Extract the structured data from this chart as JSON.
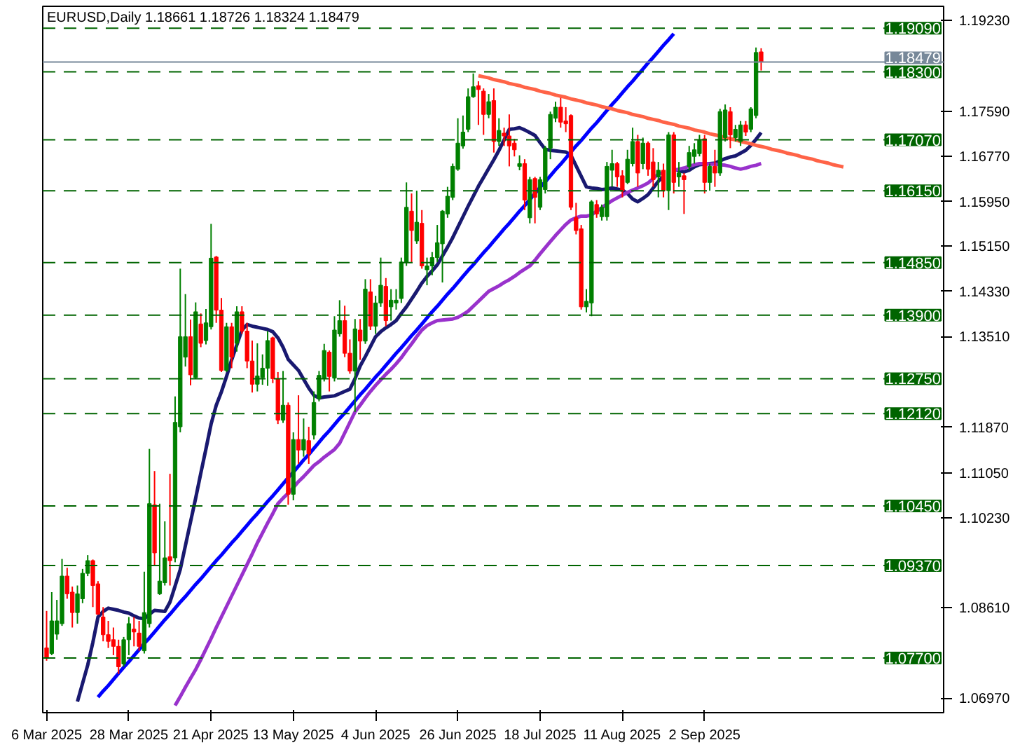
{
  "chart_data": {
    "type": "candlestick",
    "title": "EURUSD,Daily  1.18661 1.18726 1.18324 1.18479",
    "categories": [
      "6 Mar 2025",
      null,
      null,
      null,
      null,
      null,
      null,
      null,
      null,
      null,
      null,
      null,
      null,
      null,
      null,
      null,
      "28 Mar 2025",
      null,
      null,
      null,
      null,
      null,
      null,
      null,
      null,
      null,
      null,
      null,
      null,
      null,
      null,
      null,
      "21 Apr 2025",
      null,
      null,
      null,
      null,
      null,
      null,
      null,
      null,
      null,
      null,
      null,
      null,
      null,
      null,
      null,
      "13 May 2025",
      null,
      null,
      null,
      null,
      null,
      null,
      null,
      null,
      null,
      null,
      null,
      null,
      null,
      null,
      null,
      "4 Jun 2025",
      null,
      null,
      null,
      null,
      null,
      null,
      null,
      null,
      null,
      null,
      null,
      null,
      null,
      null,
      null,
      "26 Jun 2025",
      null,
      null,
      null,
      null,
      null,
      null,
      null,
      null,
      null,
      null,
      null,
      null,
      null,
      null,
      null,
      "18 Jul 2025",
      null,
      null,
      null,
      null,
      null,
      null,
      null,
      null,
      null,
      null,
      null,
      null,
      null,
      null,
      null,
      "11 Aug 2025",
      null,
      null,
      null,
      null,
      null,
      null,
      null,
      null,
      null,
      null,
      null,
      null,
      null,
      null,
      null,
      "2 Sep 2025",
      null,
      null,
      null,
      null,
      null,
      null,
      null,
      null,
      null,
      null,
      null,
      null,
      null,
      null,
      null,
      null,
      null,
      null,
      null,
      null,
      null,
      null,
      null,
      null,
      null,
      null,
      null,
      null,
      null,
      null,
      null,
      null,
      null,
      null,
      null,
      null,
      null,
      null,
      null,
      null,
      null,
      null,
      null,
      null,
      null,
      null
    ],
    "ohlc": [
      [
        1.0788,
        1.0855,
        1.0765,
        1.077
      ],
      [
        1.0778,
        1.0889,
        1.0775,
        1.0837
      ],
      [
        1.0813,
        1.0875,
        1.0803,
        1.0837
      ],
      [
        1.0832,
        1.0949,
        1.0828,
        1.0918
      ],
      [
        1.0918,
        1.0933,
        1.0877,
        1.0886
      ],
      [
        1.0889,
        1.0899,
        1.0825,
        1.0852
      ],
      [
        1.0852,
        1.0901,
        1.0832,
        1.0886
      ],
      [
        1.0877,
        1.0931,
        1.0869,
        1.0923
      ],
      [
        1.0923,
        1.0956,
        1.0918,
        1.0946
      ],
      [
        1.0946,
        1.0948,
        1.0862,
        1.0901
      ],
      [
        1.0904,
        1.0909,
        1.0848,
        1.0849
      ],
      [
        1.0844,
        1.0862,
        1.08,
        1.0812
      ],
      [
        1.0812,
        1.0837,
        1.0788,
        1.08
      ],
      [
        1.0803,
        1.0825,
        1.0775,
        1.0791
      ],
      [
        1.0791,
        1.0803,
        1.0741,
        1.0754
      ],
      [
        1.0759,
        1.0808,
        1.0754,
        1.0803
      ],
      [
        1.0803,
        1.0844,
        1.0775,
        1.0832
      ],
      [
        1.0822,
        1.0844,
        1.0791,
        1.0817
      ],
      [
        1.0815,
        1.0837,
        1.0783,
        1.0791
      ],
      [
        1.0783,
        1.0926,
        1.0778,
        1.0852
      ],
      [
        1.0832,
        1.1148,
        1.0825,
        1.1049
      ],
      [
        1.1047,
        1.1108,
        1.0936,
        1.096
      ],
      [
        1.0886,
        1.1049,
        1.0884,
        1.0909
      ],
      [
        1.0906,
        1.1017,
        1.0901,
        1.0951
      ],
      [
        1.0953,
        1.1103,
        1.0901,
        1.0946
      ],
      [
        1.0951,
        1.1243,
        1.0943,
        1.1196
      ],
      [
        1.1188,
        1.1474,
        1.1178,
        1.1351
      ],
      [
        1.1314,
        1.1428,
        1.1297,
        1.1351
      ],
      [
        1.1351,
        1.1382,
        1.1263,
        1.1282
      ],
      [
        1.1277,
        1.1413,
        1.1275,
        1.1396
      ],
      [
        1.1374,
        1.1393,
        1.1332,
        1.1339
      ],
      [
        1.1344,
        1.1401,
        1.1337,
        1.1376
      ],
      [
        1.1369,
        1.1555,
        1.1364,
        1.1493
      ],
      [
        1.1495,
        1.1497,
        1.1376,
        1.1399
      ],
      [
        1.1399,
        1.1421,
        1.1287,
        1.129
      ],
      [
        1.129,
        1.1376,
        1.1287,
        1.1369
      ],
      [
        1.1369,
        1.1376,
        1.1294,
        1.1314
      ],
      [
        1.1339,
        1.1406,
        1.1324,
        1.1396
      ],
      [
        1.1396,
        1.1406,
        1.1356,
        1.1361
      ],
      [
        1.1361,
        1.1376,
        1.1294,
        1.1307
      ],
      [
        1.1307,
        1.1344,
        1.125,
        1.1265
      ],
      [
        1.1265,
        1.1339,
        1.1252,
        1.128
      ],
      [
        1.1277,
        1.1319,
        1.1264,
        1.1294
      ],
      [
        1.1294,
        1.1361,
        1.1262,
        1.1344
      ],
      [
        1.1349,
        1.1351,
        1.1267,
        1.1275
      ],
      [
        1.1275,
        1.1287,
        1.1193,
        1.12
      ],
      [
        1.12,
        1.1289,
        1.1195,
        1.1227
      ],
      [
        1.1227,
        1.1232,
        1.1047,
        1.1066
      ],
      [
        1.1066,
        1.1178,
        1.1055,
        1.1165
      ],
      [
        1.1165,
        1.1245,
        1.1121,
        1.1146
      ],
      [
        1.1146,
        1.1203,
        1.1134,
        1.1165
      ],
      [
        1.1163,
        1.1188,
        1.1121,
        1.1139
      ],
      [
        1.1173,
        1.1252,
        1.1165,
        1.1232
      ],
      [
        1.1239,
        1.1289,
        1.1234,
        1.1281
      ],
      [
        1.1276,
        1.1338,
        1.127,
        1.1326
      ],
      [
        1.1323,
        1.1326,
        1.1252,
        1.1279
      ],
      [
        1.1276,
        1.1388,
        1.127,
        1.1363
      ],
      [
        1.1356,
        1.1417,
        1.1351,
        1.138
      ],
      [
        1.138,
        1.1407,
        1.1314,
        1.1321
      ],
      [
        1.1321,
        1.1346,
        1.1284,
        1.1289
      ],
      [
        1.1289,
        1.1383,
        1.1215,
        1.1365
      ],
      [
        1.1363,
        1.1383,
        1.1309,
        1.1343
      ],
      [
        1.1343,
        1.1455,
        1.1338,
        1.1437
      ],
      [
        1.1432,
        1.1455,
        1.1363,
        1.137
      ],
      [
        1.137,
        1.1425,
        1.1356,
        1.1412
      ],
      [
        1.1412,
        1.1494,
        1.1405,
        1.1444
      ],
      [
        1.1442,
        1.1457,
        1.137,
        1.138
      ],
      [
        1.1405,
        1.1437,
        1.138,
        1.1417
      ],
      [
        1.1412,
        1.1437,
        1.14,
        1.1417
      ],
      [
        1.142,
        1.1494,
        1.1412,
        1.1486
      ],
      [
        1.1486,
        1.163,
        1.1479,
        1.1585
      ],
      [
        1.1578,
        1.161,
        1.1486,
        1.1543
      ],
      [
        1.1524,
        1.1615,
        1.1519,
        1.1558
      ],
      [
        1.1556,
        1.158,
        1.1474,
        1.1479
      ],
      [
        1.1472,
        1.1494,
        1.1444,
        1.1479
      ],
      [
        1.1479,
        1.1504,
        1.1462,
        1.1494
      ],
      [
        1.1494,
        1.1553,
        1.1486,
        1.1521
      ],
      [
        1.1519,
        1.158,
        1.1449,
        1.1578
      ],
      [
        1.1573,
        1.1622,
        1.1566,
        1.1605
      ],
      [
        1.1603,
        1.1664,
        1.1598,
        1.1659
      ],
      [
        1.1654,
        1.1746,
        1.1651,
        1.1701
      ],
      [
        1.1696,
        1.1751,
        1.1691,
        1.1721
      ],
      [
        1.1726,
        1.18,
        1.1721,
        1.1785
      ],
      [
        1.1785,
        1.1827,
        1.1783,
        1.1803
      ],
      [
        1.1805,
        1.1813,
        1.1734,
        1.1798
      ],
      [
        1.1795,
        1.18,
        1.1716,
        1.1753
      ],
      [
        1.1753,
        1.179,
        1.1746,
        1.1776
      ],
      [
        1.1778,
        1.18,
        1.1684,
        1.1704
      ],
      [
        1.1704,
        1.1746,
        1.1696,
        1.1724
      ],
      [
        1.1719,
        1.1729,
        1.1696,
        1.1714
      ],
      [
        1.1714,
        1.1753,
        1.1659,
        1.1696
      ],
      [
        1.1701,
        1.1709,
        1.1677,
        1.1689
      ],
      [
        1.1659,
        1.1679,
        1.1652,
        1.1664
      ],
      [
        1.1664,
        1.1672,
        1.158,
        1.1598
      ],
      [
        1.1566,
        1.164,
        1.1556,
        1.1635
      ],
      [
        1.1637,
        1.164,
        1.1556,
        1.1603
      ],
      [
        1.1585,
        1.164,
        1.158,
        1.1635
      ],
      [
        1.1617,
        1.1696,
        1.161,
        1.1692
      ],
      [
        1.1692,
        1.1758,
        1.1672,
        1.1753
      ],
      [
        1.1746,
        1.1776,
        1.1739,
        1.1766
      ],
      [
        1.1766,
        1.1783,
        1.1729,
        1.1739
      ],
      [
        1.1741,
        1.1766,
        1.1721,
        1.1736
      ],
      [
        1.1751,
        1.1753,
        1.158,
        1.1585
      ],
      [
        1.1566,
        1.1593,
        1.1536,
        1.1543
      ],
      [
        1.1546,
        1.1553,
        1.14,
        1.1405
      ],
      [
        1.1405,
        1.1437,
        1.1395,
        1.1415
      ],
      [
        1.1412,
        1.1598,
        1.1388,
        1.1595
      ],
      [
        1.159,
        1.1598,
        1.1566,
        1.1573
      ],
      [
        1.1568,
        1.159,
        1.1561,
        1.1585
      ],
      [
        1.1568,
        1.1667,
        1.1561,
        1.1659
      ],
      [
        1.1652,
        1.1689,
        1.1622,
        1.1664
      ],
      [
        1.1664,
        1.1667,
        1.1622,
        1.164
      ],
      [
        1.1642,
        1.1652,
        1.1603,
        1.1615
      ],
      [
        1.163,
        1.1689,
        1.1627,
        1.1672
      ],
      [
        1.1664,
        1.1729,
        1.1659,
        1.1704
      ],
      [
        1.1704,
        1.1716,
        1.1622,
        1.1647
      ],
      [
        1.1664,
        1.1711,
        1.1654,
        1.1701
      ],
      [
        1.1701,
        1.1704,
        1.1642,
        1.1654
      ],
      [
        1.1667,
        1.1692,
        1.1622,
        1.1635
      ],
      [
        1.164,
        1.1667,
        1.1603,
        1.1652
      ],
      [
        1.1652,
        1.1664,
        1.1603,
        1.1615
      ],
      [
        1.1615,
        1.1721,
        1.158,
        1.1716
      ],
      [
        1.1716,
        1.1721,
        1.161,
        1.163
      ],
      [
        1.164,
        1.1667,
        1.1622,
        1.1647
      ],
      [
        1.1642,
        1.1647,
        1.1573,
        1.1635
      ],
      [
        1.1659,
        1.1696,
        1.1652,
        1.1684
      ],
      [
        1.1677,
        1.1701,
        1.1664,
        1.1689
      ],
      [
        1.1682,
        1.1716,
        1.1677,
        1.1706
      ],
      [
        1.1709,
        1.1716,
        1.161,
        1.163
      ],
      [
        1.163,
        1.1664,
        1.1615,
        1.1659
      ],
      [
        1.1659,
        1.1689,
        1.1622,
        1.1647
      ],
      [
        1.1647,
        1.1763,
        1.1642,
        1.1758
      ],
      [
        1.1711,
        1.1771,
        1.1704,
        1.1761
      ],
      [
        1.1758,
        1.1766,
        1.1692,
        1.1716
      ],
      [
        1.1711,
        1.1734,
        1.1704,
        1.1726
      ],
      [
        1.1704,
        1.1741,
        1.1696,
        1.1734
      ],
      [
        1.1734,
        1.1741,
        1.1714,
        1.1721
      ],
      [
        1.1726,
        1.1766,
        1.1721,
        1.1763
      ],
      [
        1.1751,
        1.1874,
        1.1746,
        1.1865
      ],
      [
        1.18661,
        1.18726,
        1.18324,
        1.18479
      ],
      null,
      null,
      null,
      null,
      null,
      null,
      null,
      null,
      null,
      null,
      null,
      null,
      null,
      null,
      null,
      null,
      null,
      null,
      null,
      null,
      null,
      null,
      null,
      null,
      null,
      null,
      null,
      null,
      null,
      null,
      null,
      null,
      null,
      null,
      null
    ],
    "colors": [
      "#ff0000",
      "#008000",
      "#008000",
      "#008000",
      "#ff0000",
      "#ff0000",
      "#008000",
      "#008000",
      "#008000",
      "#ff0000",
      "#ff0000",
      "#ff0000",
      "#ff0000",
      "#ff0000",
      "#ff0000",
      "#008000",
      "#008000",
      "#ff0000",
      "#ff0000",
      "#008000",
      "#008000",
      "#ff0000",
      "#008000",
      "#008000",
      "#ff0000",
      "#008000",
      "#008000",
      "#008000",
      "#ff0000",
      "#008000",
      "#ff0000",
      "#008000",
      "#008000",
      "#ff0000",
      "#ff0000",
      "#008000",
      "#ff0000",
      "#008000",
      "#ff0000",
      "#ff0000",
      "#ff0000",
      "#008000",
      "#008000",
      "#008000",
      "#ff0000",
      "#ff0000",
      "#008000",
      "#ff0000",
      "#008000",
      "#ff0000",
      "#008000",
      "#ff0000",
      "#008000",
      "#008000",
      "#008000",
      "#ff0000",
      "#008000",
      "#008000",
      "#ff0000",
      "#ff0000",
      "#008000",
      "#ff0000",
      "#008000",
      "#ff0000",
      "#008000",
      "#008000",
      "#ff0000",
      "#008000",
      "#008000",
      "#008000",
      "#008000",
      "#ff0000",
      "#008000",
      "#ff0000",
      "#008000",
      "#008000",
      "#008000",
      "#008000",
      "#008000",
      "#008000",
      "#008000",
      "#008000",
      "#008000",
      "#008000",
      "#ff0000",
      "#ff0000",
      "#008000",
      "#ff0000",
      "#008000",
      "#ff0000",
      "#ff0000",
      "#ff0000",
      "#008000",
      "#ff0000",
      "#008000",
      "#ff0000",
      "#008000",
      "#008000",
      "#008000",
      "#008000",
      "#ff0000",
      "#ff0000",
      "#ff0000",
      "#ff0000",
      "#ff0000",
      "#008000",
      "#008000",
      "#ff0000",
      "#008000",
      "#008000",
      "#008000",
      "#ff0000",
      "#ff0000",
      "#008000",
      "#008000",
      "#ff0000",
      "#008000",
      "#ff0000",
      "#ff0000",
      "#008000",
      "#ff0000",
      "#008000",
      "#ff0000",
      "#008000",
      "#ff0000",
      "#008000",
      "#008000",
      "#008000",
      "#ff0000",
      "#008000",
      "#ff0000",
      "#008000",
      "#008000",
      "#ff0000",
      "#008000",
      "#008000",
      "#ff0000",
      "#008000",
      "#008000",
      "#ff0000",
      null,
      null,
      null,
      null,
      null,
      null,
      null,
      null,
      null,
      null,
      null,
      null,
      null,
      null,
      null,
      null,
      null,
      null,
      null,
      null,
      null,
      null,
      null,
      null,
      null,
      null,
      null,
      null,
      null,
      null,
      null,
      null,
      null,
      null,
      null
    ],
    "series": [
      {
        "type": "line",
        "color": "#191970",
        "values": [
          null,
          null,
          null,
          null,
          null,
          null,
          1.0691,
          1.0724,
          1.0757,
          1.0798,
          1.0844,
          1.0854,
          1.086,
          1.0858,
          1.0856,
          1.0853,
          1.0851,
          1.0846,
          1.0842,
          1.0841,
          1.0849,
          1.0856,
          1.0855,
          1.0854,
          1.0871,
          1.09,
          1.093,
          1.0973,
          1.1016,
          1.1059,
          1.1104,
          1.1148,
          1.1193,
          1.1227,
          1.1251,
          1.1279,
          1.1309,
          1.1336,
          1.1363,
          1.1373,
          1.137,
          1.1368,
          1.1366,
          1.1364,
          1.136,
          1.1349,
          1.1332,
          1.131,
          1.13,
          1.129,
          1.1274,
          1.1258,
          1.1245,
          1.124,
          1.1242,
          1.1243,
          1.1244,
          1.1248,
          1.1252,
          1.1256,
          1.1275,
          1.1298,
          1.1315,
          1.1333,
          1.1351,
          1.136,
          1.1367,
          1.1373,
          1.138,
          1.1393,
          1.1405,
          1.1419,
          1.1433,
          1.1448,
          1.146,
          1.147,
          1.1481,
          1.1497,
          1.1513,
          1.153,
          1.1549,
          1.1568,
          1.1587,
          1.1605,
          1.1623,
          1.1639,
          1.1655,
          1.1671,
          1.1688,
          1.1707,
          1.1726,
          1.1727,
          1.1729,
          1.1725,
          1.172,
          1.1715,
          1.1702,
          1.169,
          1.1688,
          1.1687,
          1.1686,
          1.1685,
          1.1679,
          1.166,
          1.1641,
          1.1622,
          1.162,
          1.1619,
          1.1617,
          1.1618,
          1.162,
          1.1618,
          1.1616,
          1.161,
          1.16,
          1.1595,
          1.1601,
          1.1608,
          1.162,
          1.1632,
          1.1641,
          null,
          1.1654,
          1.1651,
          1.1649,
          1.1652,
          1.1658,
          1.1662,
          1.1663,
          1.1664,
          1.1665,
          1.1669,
          1.1673,
          1.1676,
          1.1678,
          1.1683,
          1.1688,
          1.1697,
          1.1708,
          1.172,
          null,
          null,
          null,
          null,
          null,
          null,
          null,
          null,
          null,
          null,
          null,
          null,
          null,
          null,
          null,
          null,
          null,
          null,
          null,
          null,
          null,
          null,
          null,
          null,
          null,
          null,
          null,
          null,
          null,
          null,
          null,
          null,
          null,
          null,
          null
        ]
      },
      {
        "type": "line",
        "color": "#9932cc",
        "values": [
          null,
          null,
          null,
          null,
          null,
          null,
          null,
          null,
          null,
          null,
          null,
          null,
          null,
          null,
          null,
          null,
          null,
          null,
          null,
          null,
          null,
          null,
          null,
          null,
          null,
          1.0684,
          1.07,
          1.0717,
          1.0733,
          1.0749,
          1.0767,
          1.0786,
          1.0805,
          1.0825,
          1.0844,
          1.0863,
          1.0882,
          1.0901,
          1.092,
          1.0939,
          1.0958,
          1.0978,
          1.0996,
          1.1014,
          1.1031,
          1.1049,
          1.1059,
          1.1068,
          1.1078,
          1.1089,
          1.1098,
          1.1108,
          1.1118,
          1.1125,
          1.1133,
          1.114,
          1.1147,
          1.1158,
          1.1177,
          1.1196,
          1.1215,
          1.1227,
          1.124,
          1.1252,
          1.1263,
          1.1273,
          1.1283,
          1.1292,
          1.1302,
          1.1313,
          1.1326,
          1.1338,
          1.1351,
          1.1363,
          1.1371,
          1.1376,
          1.138,
          1.1381,
          1.1382,
          1.1383,
          1.1386,
          1.1391,
          1.1397,
          1.1406,
          1.1415,
          1.1424,
          1.1433,
          1.1438,
          1.1443,
          1.1449,
          1.1454,
          1.146,
          1.1467,
          1.1473,
          1.1479,
          1.1489,
          1.1501,
          1.1512,
          1.1523,
          1.1534,
          1.1544,
          1.1554,
          1.1562,
          1.1566,
          1.1569,
          1.1569,
          1.1571,
          1.1578,
          1.1584,
          1.1591,
          1.1597,
          1.1602,
          1.1607,
          1.1612,
          1.1616,
          1.162,
          1.1624,
          1.1629,
          1.1637,
          1.1645,
          1.1648,
          null,
          1.1652,
          1.1654,
          1.1656,
          1.1659,
          1.1662,
          1.1664,
          1.1664,
          1.1663,
          1.1663,
          1.1662,
          1.1661,
          1.1659,
          1.1656,
          1.1654,
          1.1656,
          1.1659,
          1.1661,
          1.1664,
          null,
          null,
          null,
          null,
          null,
          null,
          null,
          null,
          null,
          null,
          null,
          null,
          null,
          null,
          null,
          null,
          null,
          null,
          null,
          null,
          null,
          null,
          null,
          null,
          null,
          null,
          null,
          null,
          null,
          null,
          null,
          null,
          null,
          null,
          null
        ]
      },
      {
        "type": "line",
        "color": "#0000ff",
        "values": [
          null,
          null,
          null,
          null,
          null,
          null,
          null,
          null,
          null,
          null,
          1.0699,
          1.071,
          1.072,
          1.0731,
          1.0742,
          1.0753,
          1.0763,
          1.0774,
          1.0785,
          1.0796,
          1.0806,
          1.0817,
          1.0828,
          1.0839,
          1.0849,
          1.086,
          1.0871,
          1.0881,
          1.0892,
          1.0903,
          1.0913,
          1.0924,
          1.0935,
          1.0946,
          1.0956,
          1.0967,
          1.0978,
          1.0988,
          1.0999,
          1.101,
          1.1021,
          1.1031,
          1.1042,
          1.1053,
          1.1063,
          1.1074,
          1.1085,
          1.1096,
          1.1106,
          1.1117,
          1.1128,
          1.1138,
          1.1149,
          1.116,
          1.1171,
          1.1181,
          1.1192,
          1.1203,
          1.1213,
          1.1224,
          1.1235,
          1.1246,
          1.1256,
          1.1267,
          1.1278,
          1.1288,
          1.1299,
          1.131,
          1.1321,
          1.1331,
          1.1342,
          1.1353,
          1.1363,
          1.1374,
          1.1385,
          1.1396,
          1.1406,
          1.1417,
          1.1428,
          1.1438,
          1.1449,
          1.146,
          1.1471,
          1.1481,
          1.1492,
          1.1503,
          1.1513,
          1.1524,
          1.1535,
          1.1546,
          1.1556,
          1.1567,
          1.1578,
          1.1588,
          1.1599,
          1.161,
          1.1621,
          1.1631,
          1.1642,
          1.1653,
          1.1663,
          1.1674,
          1.1685,
          1.1696,
          1.1706,
          1.1717,
          1.1728,
          1.1738,
          1.1749,
          1.176,
          1.1771,
          1.1781,
          1.1792,
          1.1803,
          1.1813,
          1.1824,
          1.1835,
          1.1846,
          1.1856,
          1.1867,
          1.1878,
          1.1888,
          1.1899,
          null,
          null,
          null,
          null,
          null,
          null,
          null,
          null,
          null,
          null,
          null,
          null,
          null,
          null,
          null,
          null,
          null,
          null,
          null,
          null,
          null,
          null,
          null,
          null,
          null,
          null,
          null,
          null,
          null,
          null,
          null,
          null,
          null,
          null,
          null,
          null,
          null,
          null,
          null,
          null,
          null,
          null,
          null,
          null,
          null,
          null,
          null,
          null,
          null,
          null,
          null,
          null
        ]
      },
      {
        "type": "line",
        "color": "#ff6347",
        "values": [
          null,
          null,
          null,
          null,
          null,
          null,
          null,
          null,
          null,
          null,
          null,
          null,
          null,
          null,
          null,
          null,
          null,
          null,
          null,
          null,
          null,
          null,
          null,
          null,
          null,
          null,
          null,
          null,
          null,
          null,
          null,
          null,
          null,
          null,
          null,
          null,
          null,
          null,
          null,
          null,
          null,
          null,
          null,
          null,
          null,
          null,
          null,
          null,
          null,
          null,
          null,
          null,
          null,
          null,
          null,
          null,
          null,
          null,
          null,
          null,
          null,
          null,
          null,
          null,
          null,
          null,
          null,
          null,
          null,
          null,
          null,
          null,
          null,
          null,
          null,
          null,
          null,
          null,
          null,
          null,
          null,
          null,
          null,
          null,
          1.1823,
          1.1821,
          1.1819,
          1.1816,
          1.1814,
          1.1812,
          1.1809,
          1.1807,
          1.1805,
          1.1802,
          1.18,
          1.1798,
          1.1795,
          1.1793,
          1.1791,
          1.1788,
          1.1786,
          1.1784,
          1.1781,
          1.1779,
          1.1777,
          1.1774,
          1.1772,
          1.177,
          1.1767,
          1.1765,
          1.1763,
          1.176,
          1.1758,
          1.1756,
          1.1753,
          1.1751,
          1.1749,
          1.1746,
          1.1744,
          1.1742,
          1.1739,
          1.1737,
          1.1735,
          1.1732,
          1.173,
          1.1728,
          1.1725,
          1.1723,
          1.1721,
          1.1718,
          1.1716,
          1.1714,
          1.1711,
          1.1709,
          1.1707,
          1.1704,
          1.1702,
          1.17,
          1.1697,
          1.1695,
          1.1693,
          1.169,
          1.1688,
          1.1686,
          1.1683,
          1.1681,
          1.1679,
          1.1676,
          1.1674,
          1.1672,
          1.1669,
          1.1667,
          1.1665,
          1.1662,
          1.166,
          1.1658,
          null,
          null,
          null,
          null,
          null,
          null,
          null,
          null,
          null,
          null,
          null,
          null,
          null,
          null,
          null,
          null,
          null,
          null,
          null
        ]
      }
    ],
    "ylim": [
      1.0671,
      1.19485
    ],
    "yticks": [
      {
        "value": 1.1923,
        "label": "1.19230"
      },
      {
        "value": 1.1759,
        "label": "1.17590"
      },
      {
        "value": 1.1677,
        "label": "1.16770"
      },
      {
        "value": 1.1595,
        "label": "1.15950"
      },
      {
        "value": 1.1515,
        "label": "1.15150"
      },
      {
        "value": 1.1433,
        "label": "1.14330"
      },
      {
        "value": 1.1351,
        "label": "1.13510"
      },
      {
        "value": 1.1187,
        "label": "1.11870"
      },
      {
        "value": 1.1105,
        "label": "1.11050"
      },
      {
        "value": 1.1023,
        "label": "1.10230"
      },
      {
        "value": 1.0861,
        "label": "1.08610"
      },
      {
        "value": 1.0697,
        "label": "1.06970"
      }
    ],
    "ref_lines": [
      {
        "axis": "y",
        "value": 1.1909,
        "label": "1.19090",
        "color": "#006400",
        "line_style": "dashed"
      },
      {
        "axis": "y",
        "value": 1.18479,
        "label": "1.18479",
        "color": "#778899",
        "line_style": "solid"
      },
      {
        "axis": "y",
        "value": 1.183,
        "label": "1.18300",
        "color": "#006400",
        "line_style": "dashed"
      },
      {
        "axis": "y",
        "value": 1.1707,
        "label": "1.17070",
        "color": "#006400",
        "line_style": "dashed"
      },
      {
        "axis": "y",
        "value": 1.1615,
        "label": "1.16150",
        "color": "#006400",
        "line_style": "dashed"
      },
      {
        "axis": "y",
        "value": 1.1485,
        "label": "1.14850",
        "color": "#006400",
        "line_style": "dashed"
      },
      {
        "axis": "y",
        "value": 1.139,
        "label": "1.13900",
        "color": "#006400",
        "line_style": "dashed"
      },
      {
        "axis": "y",
        "value": 1.1275,
        "label": "1.12750",
        "color": "#006400",
        "line_style": "dashed"
      },
      {
        "axis": "y",
        "value": 1.1212,
        "label": "1.12120",
        "color": "#006400",
        "line_style": "dashed"
      },
      {
        "axis": "y",
        "value": 1.1045,
        "label": "1.10450",
        "color": "#006400",
        "line_style": "dashed"
      },
      {
        "axis": "y",
        "value": 1.0937,
        "label": "1.09370",
        "color": "#006400",
        "line_style": "dashed"
      },
      {
        "axis": "y",
        "value": 1.077,
        "label": "1.07700",
        "color": "#006400",
        "line_style": "dashed"
      }
    ],
    "grid": false
  }
}
